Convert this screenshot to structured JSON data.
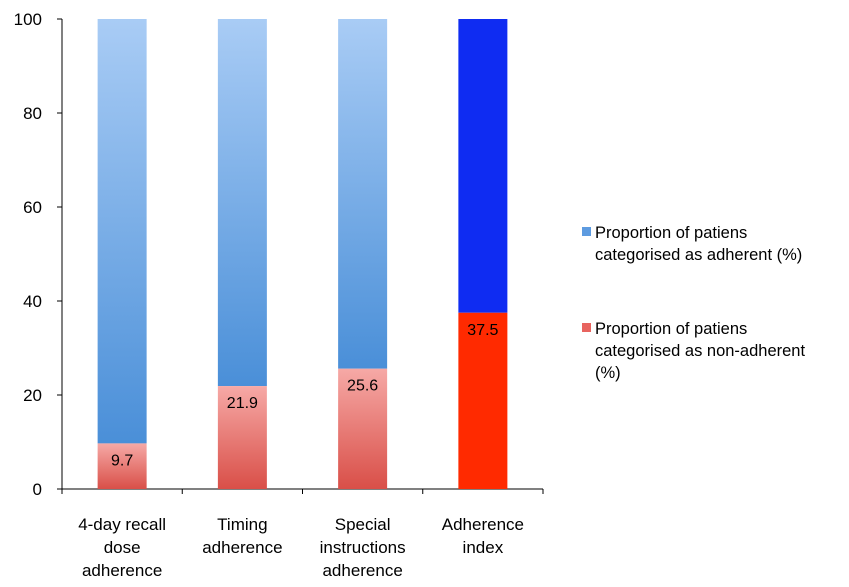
{
  "chart_data": {
    "type": "bar",
    "stacked": true,
    "categories": [
      [
        "4-day recall",
        "dose",
        "adherence"
      ],
      [
        "Timing",
        "adherence"
      ],
      [
        "Special",
        "instructions",
        "adherence"
      ],
      [
        "Adherence",
        "index"
      ]
    ],
    "series": [
      {
        "name": "Proportion of patiens categorised as non-adherent (%)",
        "values": [
          9.7,
          21.9,
          25.6,
          37.5
        ],
        "labels": [
          "9.7",
          "21.9",
          "25.6",
          "37.5"
        ],
        "color": "#e8756f",
        "highlight_color": "#ff2a00"
      },
      {
        "name": "Proportion of patiens categorised as adherent (%)",
        "values": [
          90.3,
          78.1,
          74.4,
          62.5
        ],
        "color": "#6fa6e6",
        "highlight_color": "#0f2cf2"
      }
    ],
    "highlight_category_index": 3,
    "ylim": [
      0,
      100
    ],
    "yticks": [
      "0",
      "20",
      "40",
      "60",
      "80",
      "100"
    ],
    "legend_position": "right",
    "grid": false
  },
  "legend": [
    {
      "lines": [
        "Proportion of patiens",
        "categorised as adherent (%)"
      ],
      "color": "#5d9be0"
    },
    {
      "lines": [
        "Proportion of patiens",
        "categorised as non-adherent",
        "(%)"
      ],
      "color": "#e8645f"
    }
  ]
}
